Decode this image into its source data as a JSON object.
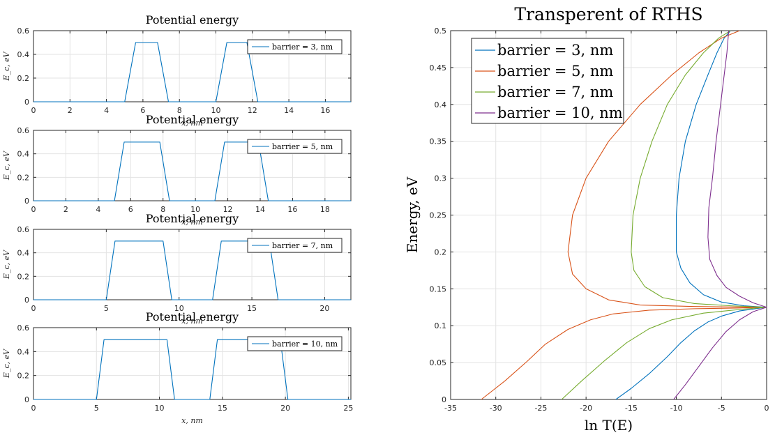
{
  "colors": {
    "blue": "#0072BD",
    "orange": "#D95319",
    "yellow": "#EDB120",
    "purple": "#7E2F8E",
    "green": "#77AC30",
    "grid": "#e3e3e3",
    "axis": "#262626"
  },
  "chart_data": [
    {
      "type": "line",
      "title": "Potential energy",
      "xlabel": "x, nm",
      "ylabel": "E_c, eV",
      "xlim": [
        0,
        17.4
      ],
      "ylim": [
        0,
        0.6
      ],
      "xticks": [
        0,
        2,
        4,
        6,
        8,
        10,
        12,
        14,
        16
      ],
      "yticks": [
        0,
        0.2,
        0.4,
        0.6
      ],
      "grid": true,
      "legend": "top-right",
      "series": [
        {
          "name": "barrier = 3, nm",
          "x": [
            0,
            5.0,
            5.6,
            6.8,
            7.4,
            10.0,
            10.6,
            11.7,
            12.3,
            17.4
          ],
          "y": [
            0,
            0,
            0.5,
            0.5,
            0,
            0,
            0.5,
            0.5,
            0,
            0
          ]
        }
      ]
    },
    {
      "type": "line",
      "title": "Potential energy",
      "xlabel": "x, nm",
      "ylabel": "E_c, eV",
      "xlim": [
        0,
        19.6
      ],
      "ylim": [
        0,
        0.6
      ],
      "xticks": [
        0,
        2,
        4,
        6,
        8,
        10,
        12,
        14,
        16,
        18
      ],
      "yticks": [
        0,
        0.2,
        0.4,
        0.6
      ],
      "grid": true,
      "legend": "top-right",
      "series": [
        {
          "name": "barrier = 5, nm",
          "x": [
            0,
            5.0,
            5.6,
            7.8,
            8.4,
            11.2,
            11.8,
            13.9,
            14.5,
            19.6
          ],
          "y": [
            0,
            0,
            0.5,
            0.5,
            0,
            0,
            0.5,
            0.5,
            0,
            0
          ]
        }
      ]
    },
    {
      "type": "line",
      "title": "Potential energy",
      "xlabel": "x, nm",
      "ylabel": "E_c, eV",
      "xlim": [
        0,
        21.8
      ],
      "ylim": [
        0,
        0.6
      ],
      "xticks": [
        0,
        5,
        10,
        15,
        20
      ],
      "yticks": [
        0,
        0.2,
        0.4,
        0.6
      ],
      "grid": true,
      "legend": "top-right",
      "series": [
        {
          "name": "barrier = 7, nm",
          "x": [
            0,
            5.0,
            5.6,
            8.9,
            9.5,
            12.3,
            12.9,
            16.2,
            16.8,
            21.8
          ],
          "y": [
            0,
            0,
            0.5,
            0.5,
            0,
            0,
            0.5,
            0.5,
            0,
            0
          ]
        }
      ]
    },
    {
      "type": "line",
      "title": "Potential energy",
      "xlabel": "x, nm",
      "ylabel": "E_c, eV",
      "xlim": [
        0,
        25.2
      ],
      "ylim": [
        0,
        0.6
      ],
      "xticks": [
        0,
        5,
        10,
        15,
        20,
        25
      ],
      "yticks": [
        0,
        0.2,
        0.4,
        0.6
      ],
      "grid": true,
      "legend": "top-right",
      "series": [
        {
          "name": "barrier = 10, nm",
          "x": [
            0,
            5.0,
            5.6,
            10.6,
            11.2,
            14.0,
            14.6,
            19.6,
            20.2,
            25.2
          ],
          "y": [
            0,
            0,
            0.5,
            0.5,
            0,
            0,
            0.5,
            0.5,
            0,
            0
          ]
        }
      ]
    },
    {
      "type": "line",
      "title": "Transperent of RTHS",
      "xlabel": "ln T(E)",
      "ylabel": "Energy, eV",
      "xlim": [
        -35,
        0
      ],
      "ylim": [
        0,
        0.5
      ],
      "xticks": [
        -35,
        -30,
        -25,
        -20,
        -15,
        -10,
        -5,
        0
      ],
      "yticks": [
        0,
        0.05,
        0.1,
        0.15,
        0.2,
        0.25,
        0.3,
        0.35,
        0.4,
        0.45,
        0.5
      ],
      "grid": true,
      "legend": "top-left",
      "series": [
        {
          "name": "barrier = 3, nm",
          "x": [
            -16.7,
            -15.0,
            -13.0,
            -11.0,
            -9.5,
            -8.0,
            -6.5,
            -5.0,
            -3.0,
            -1.2,
            0,
            -2.5,
            -5.0,
            -7.0,
            -8.5,
            -9.5,
            -10.0,
            -10.0,
            -9.7,
            -9.0,
            -7.8,
            -6.5,
            -5.5,
            -4.7,
            -4.0
          ],
          "y": [
            0,
            0.015,
            0.035,
            0.058,
            0.077,
            0.093,
            0.105,
            0.113,
            0.12,
            0.123,
            0.125,
            0.127,
            0.132,
            0.142,
            0.158,
            0.178,
            0.2,
            0.25,
            0.3,
            0.35,
            0.4,
            0.44,
            0.47,
            0.49,
            0.5
          ]
        },
        {
          "name": "barrier = 5, nm",
          "x": [
            -31.6,
            -29.0,
            -26.5,
            -24.5,
            -22.0,
            -19.5,
            -17.0,
            -13.0,
            -8.0,
            -3.0,
            0,
            -8.0,
            -14.0,
            -17.5,
            -20.0,
            -21.5,
            -22.0,
            -21.5,
            -20.0,
            -17.5,
            -14.0,
            -10.5,
            -7.5,
            -5.0,
            -3.0
          ],
          "y": [
            0,
            0.025,
            0.052,
            0.075,
            0.095,
            0.108,
            0.116,
            0.121,
            0.123,
            0.124,
            0.125,
            0.126,
            0.128,
            0.135,
            0.15,
            0.17,
            0.2,
            0.25,
            0.3,
            0.35,
            0.4,
            0.44,
            0.47,
            0.49,
            0.5
          ]
        },
        {
          "name": "barrier = 7, nm",
          "x": [
            -22.7,
            -20.5,
            -18.0,
            -15.5,
            -13.0,
            -10.5,
            -7.0,
            -3.0,
            0,
            -4.0,
            -8.0,
            -11.5,
            -13.5,
            -14.7,
            -15.0,
            -14.8,
            -14.0,
            -12.7,
            -11.0,
            -9.0,
            -7.0,
            -5.3,
            -4.0
          ],
          "y": [
            0,
            0.025,
            0.052,
            0.077,
            0.096,
            0.108,
            0.117,
            0.122,
            0.125,
            0.127,
            0.13,
            0.138,
            0.153,
            0.175,
            0.2,
            0.25,
            0.3,
            0.35,
            0.4,
            0.44,
            0.47,
            0.49,
            0.5
          ]
        },
        {
          "name": "barrier = 10, nm",
          "x": [
            -10.3,
            -9.0,
            -7.5,
            -6.0,
            -4.5,
            -3.0,
            -1.5,
            0,
            -1.5,
            -3.0,
            -4.5,
            -5.5,
            -6.3,
            -6.5,
            -6.4,
            -6.0,
            -5.6,
            -5.1,
            -4.7,
            -4.4,
            -4.2
          ],
          "y": [
            0,
            0.02,
            0.045,
            0.07,
            0.092,
            0.108,
            0.119,
            0.125,
            0.131,
            0.14,
            0.152,
            0.168,
            0.19,
            0.22,
            0.26,
            0.3,
            0.35,
            0.4,
            0.44,
            0.47,
            0.5
          ]
        }
      ]
    }
  ]
}
